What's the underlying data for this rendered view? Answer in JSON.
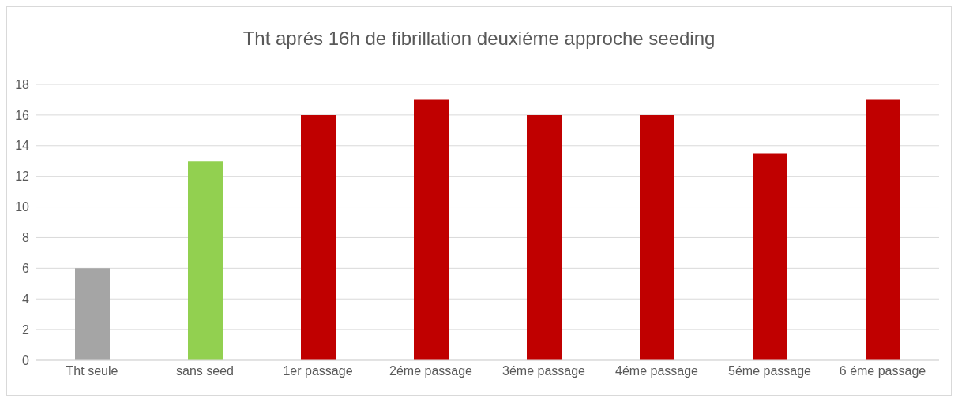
{
  "chart_data": {
    "type": "bar",
    "title": "Tht aprés 16h de fibrillation deuxiéme approche seeding",
    "categories": [
      "Tht seule",
      "sans seed",
      "1er passage",
      "2éme passage",
      "3éme passage",
      "4éme passage",
      "5éme passage",
      "6 éme passage"
    ],
    "values": [
      6,
      13,
      16,
      17,
      16,
      16,
      13.5,
      17
    ],
    "colors": [
      "#a5a5a5",
      "#92d050",
      "#c00000",
      "#c00000",
      "#c00000",
      "#c00000",
      "#c00000",
      "#c00000"
    ],
    "ylim": [
      0,
      18
    ],
    "yticks": [
      0,
      2,
      4,
      6,
      8,
      10,
      12,
      14,
      16,
      18
    ],
    "grid": "y",
    "legend": false
  }
}
